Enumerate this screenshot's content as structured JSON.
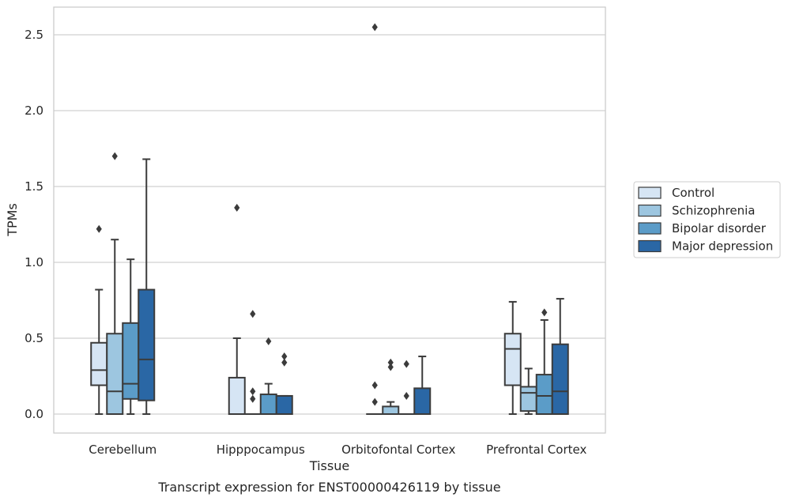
{
  "caption": "Transcript expression for ENST00000426119 by tissue",
  "chart_data": {
    "type": "box",
    "title": "",
    "xlabel": "Tissue",
    "ylabel": "TPMs",
    "ylim": [
      -0.12,
      2.68
    ],
    "yticks": [
      "0.0",
      "0.5",
      "1.0",
      "1.5",
      "2.0",
      "2.5"
    ],
    "grid": true,
    "legend_position": "right",
    "categories": [
      "Cerebellum",
      "Hipppocampus",
      "Orbitofontal Cortex",
      "Prefrontal Cortex"
    ],
    "series": [
      {
        "name": "Control",
        "color": "#d6e5f4",
        "boxes": [
          {
            "whislo": 0.0,
            "q1": 0.19,
            "med": 0.29,
            "q3": 0.47,
            "whishi": 0.82,
            "fliers": [
              1.22
            ]
          },
          {
            "whislo": 0.0,
            "q1": 0.0,
            "med": 0.0,
            "q3": 0.24,
            "whishi": 0.5,
            "fliers": [
              1.36
            ]
          },
          {
            "whislo": 0.0,
            "q1": 0.0,
            "med": 0.0,
            "q3": 0.0,
            "whishi": 0.0,
            "fliers": [
              0.08,
              0.19,
              2.55
            ]
          },
          {
            "whislo": 0.0,
            "q1": 0.19,
            "med": 0.43,
            "q3": 0.53,
            "whishi": 0.74,
            "fliers": []
          }
        ]
      },
      {
        "name": "Schizophrenia",
        "color": "#9dc6e0",
        "boxes": [
          {
            "whislo": 0.0,
            "q1": 0.0,
            "med": 0.15,
            "q3": 0.53,
            "whishi": 1.15,
            "fliers": [
              1.7
            ]
          },
          {
            "whislo": 0.0,
            "q1": 0.0,
            "med": 0.0,
            "q3": 0.0,
            "whishi": 0.0,
            "fliers": [
              0.1,
              0.15,
              0.66
            ]
          },
          {
            "whislo": 0.0,
            "q1": 0.0,
            "med": 0.0,
            "q3": 0.05,
            "whishi": 0.08,
            "fliers": [
              0.31,
              0.34
            ]
          },
          {
            "whislo": 0.0,
            "q1": 0.02,
            "med": 0.14,
            "q3": 0.18,
            "whishi": 0.3,
            "fliers": []
          }
        ]
      },
      {
        "name": "Bipolar disorder",
        "color": "#5b9cc8",
        "boxes": [
          {
            "whislo": 0.0,
            "q1": 0.1,
            "med": 0.2,
            "q3": 0.6,
            "whishi": 1.02,
            "fliers": []
          },
          {
            "whislo": 0.0,
            "q1": 0.0,
            "med": 0.0,
            "q3": 0.13,
            "whishi": 0.2,
            "fliers": [
              0.48
            ]
          },
          {
            "whislo": 0.0,
            "q1": 0.0,
            "med": 0.0,
            "q3": 0.0,
            "whishi": 0.0,
            "fliers": [
              0.12,
              0.33
            ]
          },
          {
            "whislo": 0.0,
            "q1": 0.0,
            "med": 0.12,
            "q3": 0.26,
            "whishi": 0.62,
            "fliers": [
              0.67
            ]
          }
        ]
      },
      {
        "name": "Major depression",
        "color": "#2a67a5",
        "boxes": [
          {
            "whislo": 0.0,
            "q1": 0.09,
            "med": 0.36,
            "q3": 0.82,
            "whishi": 1.68,
            "fliers": []
          },
          {
            "whislo": 0.0,
            "q1": 0.0,
            "med": 0.0,
            "q3": 0.12,
            "whishi": 0.12,
            "fliers": [
              0.34,
              0.38
            ]
          },
          {
            "whislo": 0.0,
            "q1": 0.0,
            "med": 0.0,
            "q3": 0.17,
            "whishi": 0.38,
            "fliers": []
          },
          {
            "whislo": 0.0,
            "q1": 0.0,
            "med": 0.15,
            "q3": 0.46,
            "whishi": 0.76,
            "fliers": []
          }
        ]
      }
    ]
  }
}
